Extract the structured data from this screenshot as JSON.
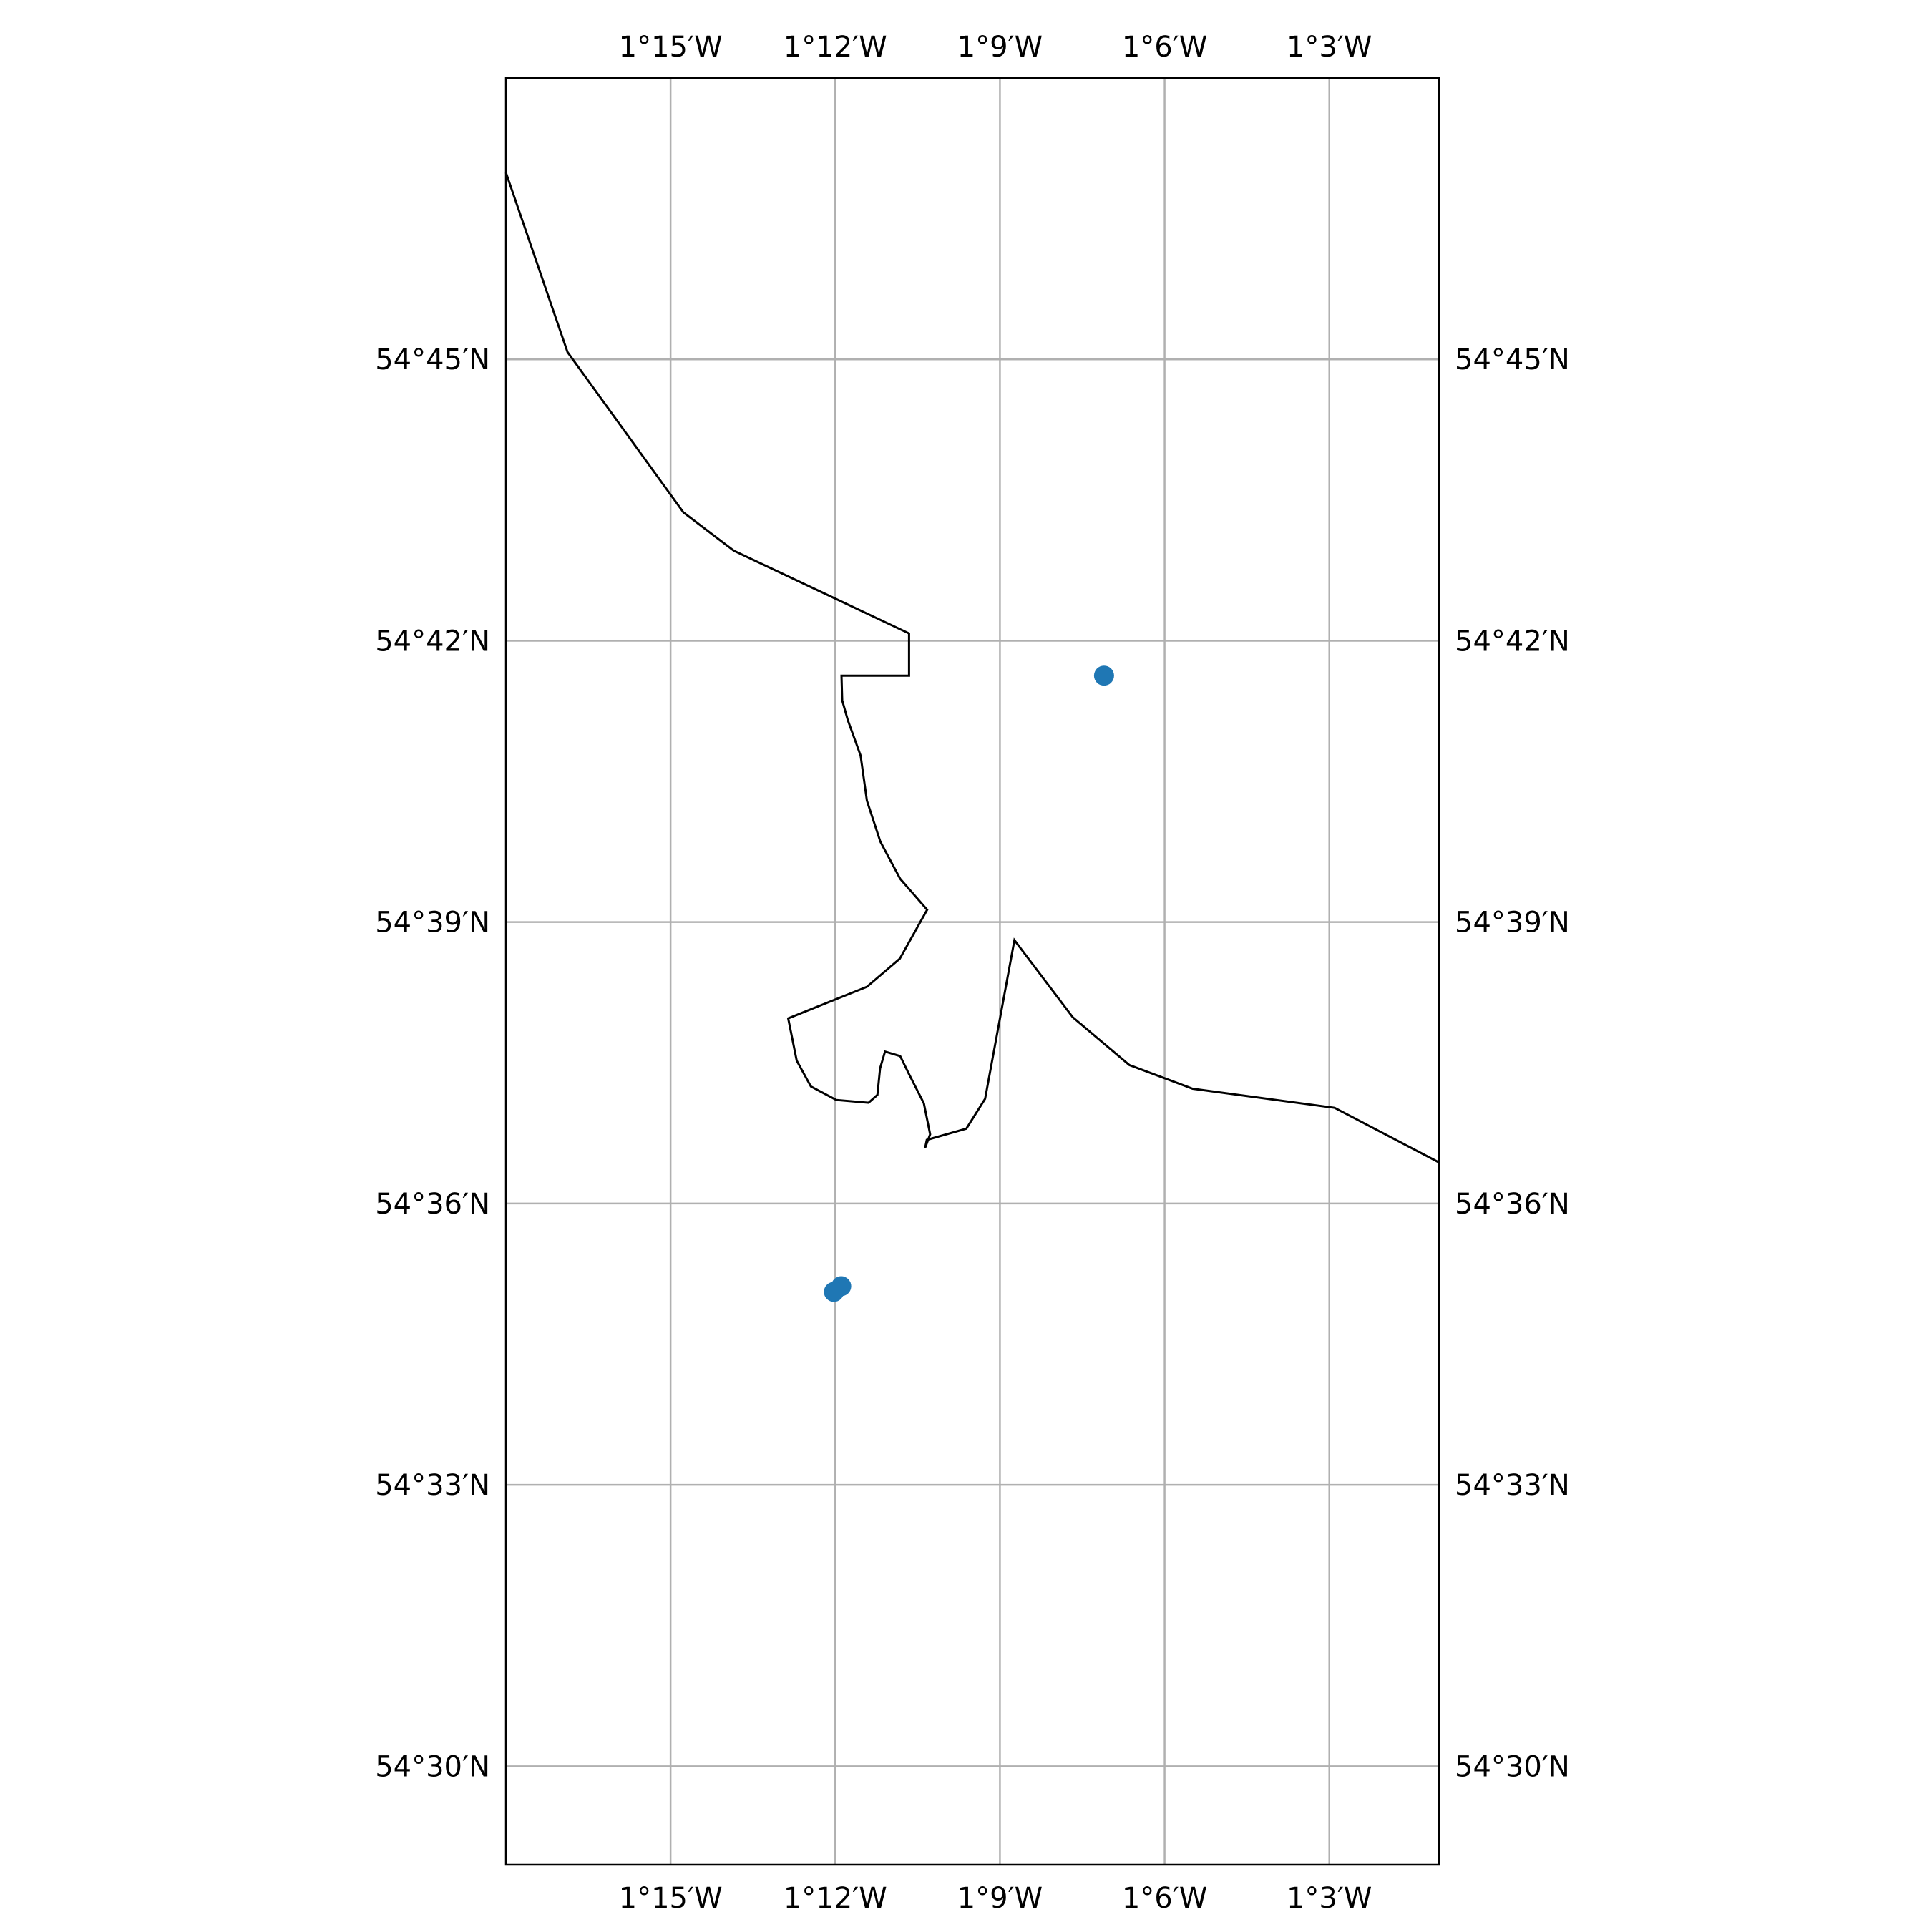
{
  "map": {
    "projection": "lat-lon graticule",
    "extent": {
      "lon_min": -1.3,
      "lon_max": -1.0167,
      "lat_min": 54.4825,
      "lat_max": 54.8
    },
    "gridlines": true,
    "grid_color": "#b0b0b0",
    "coastline_color": "#000000",
    "point_color": "#1f77b4",
    "lon_ticks": [
      {
        "value": -1.25,
        "label": "1°15′W"
      },
      {
        "value": -1.2,
        "label": "1°12′W"
      },
      {
        "value": -1.15,
        "label": "1°9′W"
      },
      {
        "value": -1.1,
        "label": "1°6′W"
      },
      {
        "value": -1.05,
        "label": "1°3′W"
      }
    ],
    "lat_ticks": [
      {
        "value": 54.75,
        "label": "54°45′N"
      },
      {
        "value": 54.7,
        "label": "54°42′N"
      },
      {
        "value": 54.65,
        "label": "54°39′N"
      },
      {
        "value": 54.6,
        "label": "54°36′N"
      },
      {
        "value": 54.55,
        "label": "54°33′N"
      },
      {
        "value": 54.5,
        "label": "54°30′N"
      }
    ],
    "tick_label_sides": "all four sides",
    "coastline": [
      [
        -1.3,
        54.7832
      ],
      [
        -1.2813,
        54.7513
      ],
      [
        -1.2461,
        54.7228
      ],
      [
        -1.2308,
        54.716
      ],
      [
        -1.1776,
        54.7013
      ],
      [
        -1.1776,
        54.6938
      ],
      [
        -1.1981,
        54.6938
      ],
      [
        -1.1979,
        54.6894
      ],
      [
        -1.1962,
        54.6859
      ],
      [
        -1.1923,
        54.6796
      ],
      [
        -1.1904,
        54.6716
      ],
      [
        -1.1863,
        54.6643
      ],
      [
        -1.1803,
        54.6577
      ],
      [
        -1.1721,
        54.6522
      ],
      [
        -1.1804,
        54.6435
      ],
      [
        -1.1904,
        54.6385
      ],
      [
        -1.2143,
        54.6329
      ],
      [
        -1.2117,
        54.6254
      ],
      [
        -1.2074,
        54.6208
      ],
      [
        -1.1997,
        54.6184
      ],
      [
        -1.1899,
        54.6179
      ],
      [
        -1.1872,
        54.6193
      ],
      [
        -1.1864,
        54.624
      ],
      [
        -1.1849,
        54.627
      ],
      [
        -1.1803,
        54.6262
      ],
      [
        -1.1777,
        54.6231
      ],
      [
        -1.1731,
        54.6178
      ],
      [
        -1.1712,
        54.6123
      ],
      [
        -1.1727,
        54.6099
      ],
      [
        -1.1722,
        54.6113
      ],
      [
        -1.1602,
        54.6133
      ],
      [
        -1.1545,
        54.6186
      ],
      [
        -1.1456,
        54.6468
      ],
      [
        -1.1279,
        54.6331
      ],
      [
        -1.1107,
        54.6246
      ],
      [
        -1.0915,
        54.6204
      ],
      [
        -1.0484,
        54.617
      ],
      [
        -1.0167,
        54.6073
      ]
    ],
    "points": [
      {
        "lon": -1.1184,
        "lat": 54.6938
      },
      {
        "lon": -1.1982,
        "lat": 54.5853
      },
      {
        "lon": -1.2004,
        "lat": 54.5843
      }
    ]
  }
}
